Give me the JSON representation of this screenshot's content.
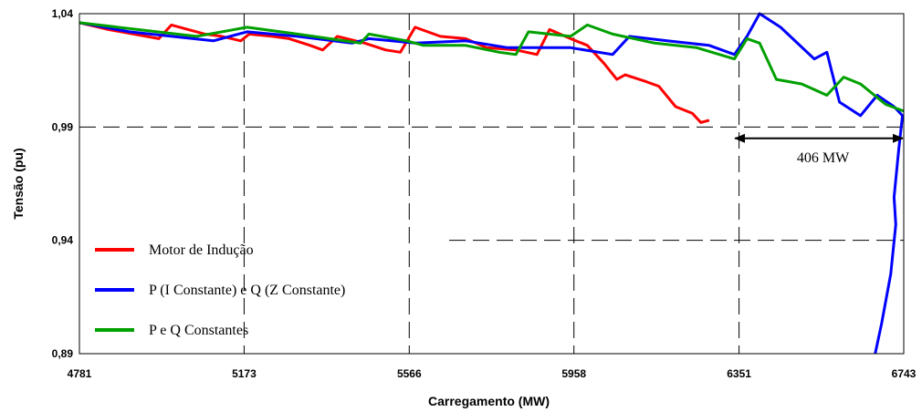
{
  "chart_data": {
    "type": "line",
    "title": "",
    "xlabel": "Carregamento (MW)",
    "ylabel": "Tensão (pu)",
    "xlim": [
      4781,
      6743
    ],
    "ylim": [
      0.89,
      1.04
    ],
    "x_ticks": [
      4781,
      5173,
      5566,
      5958,
      6351,
      6743
    ],
    "x_tick_labels": [
      "4781",
      "5173",
      "5566",
      "5958",
      "6351",
      "6743"
    ],
    "y_ticks": [
      0.89,
      0.94,
      0.99,
      1.04
    ],
    "y_tick_labels": [
      "0,89",
      "0,94",
      "0,99",
      "1,04"
    ],
    "grid": "dashed",
    "legend_position": "bottom-left",
    "annotation": {
      "text": "406 MW",
      "x_from": 6337,
      "x_to": 6743,
      "y": 0.985
    },
    "series": [
      {
        "name": "Motor de Indução",
        "color": "#ff0000",
        "points": [
          [
            4781,
            1.036
          ],
          [
            4850,
            1.033
          ],
          [
            4940,
            1.03
          ],
          [
            4970,
            1.029
          ],
          [
            5000,
            1.035
          ],
          [
            5080,
            1.031
          ],
          [
            5120,
            1.03
          ],
          [
            5165,
            1.028
          ],
          [
            5185,
            1.031
          ],
          [
            5240,
            1.03
          ],
          [
            5280,
            1.029
          ],
          [
            5330,
            1.026
          ],
          [
            5360,
            1.024
          ],
          [
            5395,
            1.03
          ],
          [
            5460,
            1.027
          ],
          [
            5510,
            1.024
          ],
          [
            5545,
            1.023
          ],
          [
            5580,
            1.034
          ],
          [
            5640,
            1.03
          ],
          [
            5700,
            1.029
          ],
          [
            5750,
            1.025
          ],
          [
            5820,
            1.024
          ],
          [
            5870,
            1.022
          ],
          [
            5900,
            1.033
          ],
          [
            5950,
            1.029
          ],
          [
            5990,
            1.026
          ],
          [
            6030,
            1.018
          ],
          [
            6060,
            1.011
          ],
          [
            6080,
            1.013
          ],
          [
            6130,
            1.01
          ],
          [
            6160,
            1.008
          ],
          [
            6200,
            0.999
          ],
          [
            6240,
            0.996
          ],
          [
            6260,
            0.992
          ],
          [
            6280,
            0.993
          ]
        ]
      },
      {
        "name": "P (I Constante) e Q (Z Constante)",
        "color": "#0000ff",
        "points": [
          [
            4781,
            1.036
          ],
          [
            4900,
            1.032
          ],
          [
            5100,
            1.028
          ],
          [
            5180,
            1.032
          ],
          [
            5300,
            1.03
          ],
          [
            5430,
            1.027
          ],
          [
            5470,
            1.029
          ],
          [
            5580,
            1.027
          ],
          [
            5700,
            1.028
          ],
          [
            5800,
            1.025
          ],
          [
            5950,
            1.025
          ],
          [
            6050,
            1.022
          ],
          [
            6090,
            1.03
          ],
          [
            6180,
            1.028
          ],
          [
            6280,
            1.026
          ],
          [
            6340,
            1.022
          ],
          [
            6370,
            1.03
          ],
          [
            6400,
            1.04
          ],
          [
            6450,
            1.034
          ],
          [
            6530,
            1.02
          ],
          [
            6560,
            1.023
          ],
          [
            6590,
            1.001
          ],
          [
            6640,
            0.995
          ],
          [
            6680,
            1.004
          ],
          [
            6720,
            0.999
          ],
          [
            6740,
            0.995
          ],
          [
            6731,
            0.98
          ],
          [
            6720,
            0.959
          ],
          [
            6724,
            0.947
          ],
          [
            6712,
            0.925
          ],
          [
            6690,
            0.903
          ],
          [
            6675,
            0.89
          ]
        ]
      },
      {
        "name": "P e Q Constantes",
        "color": "#00a000",
        "points": [
          [
            4781,
            1.036
          ],
          [
            5060,
            1.03
          ],
          [
            5180,
            1.034
          ],
          [
            5300,
            1.031
          ],
          [
            5450,
            1.027
          ],
          [
            5470,
            1.031
          ],
          [
            5560,
            1.028
          ],
          [
            5600,
            1.026
          ],
          [
            5700,
            1.026
          ],
          [
            5780,
            1.023
          ],
          [
            5820,
            1.022
          ],
          [
            5850,
            1.032
          ],
          [
            5950,
            1.03
          ],
          [
            5990,
            1.035
          ],
          [
            6050,
            1.031
          ],
          [
            6150,
            1.027
          ],
          [
            6250,
            1.025
          ],
          [
            6340,
            1.02
          ],
          [
            6370,
            1.029
          ],
          [
            6400,
            1.027
          ],
          [
            6440,
            1.011
          ],
          [
            6500,
            1.009
          ],
          [
            6560,
            1.004
          ],
          [
            6600,
            1.012
          ],
          [
            6640,
            1.009
          ],
          [
            6700,
            1.0
          ],
          [
            6743,
            0.997
          ]
        ]
      }
    ]
  }
}
